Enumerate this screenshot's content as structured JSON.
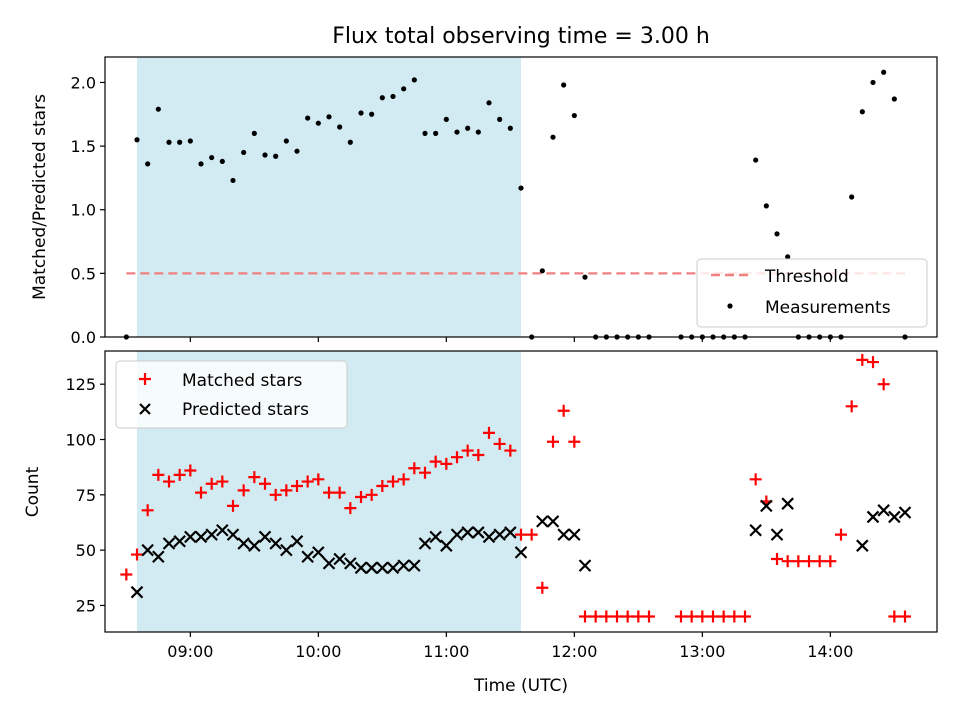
{
  "title": "Flux total observing time = 3.00 h",
  "colors": {
    "shade": "#add8e6",
    "threshold": "#f08080",
    "measurements": "#000000",
    "matched": "#ff0000",
    "predicted": "#000000"
  },
  "chart_data": [
    {
      "type": "scatter",
      "ylabel": "Matched/Predicted stars",
      "ylim": [
        0,
        2.2
      ],
      "yticks": [
        0.0,
        0.5,
        1.0,
        1.5,
        2.0
      ],
      "ytick_labels": [
        "0.0",
        "0.5",
        "1.0",
        "1.5",
        "2.0"
      ],
      "legend_position": "lower-right",
      "shaded_interval": [
        "08:35",
        "11:35"
      ],
      "threshold": {
        "name": "Threshold",
        "value": 0.5,
        "x_range": [
          "08:30",
          "14:35"
        ]
      },
      "series": [
        {
          "name": "Measurements",
          "marker": "dot",
          "x": [
            "08:30",
            "08:35",
            "08:40",
            "08:45",
            "08:50",
            "08:55",
            "09:00",
            "09:05",
            "09:10",
            "09:15",
            "09:20",
            "09:25",
            "09:30",
            "09:35",
            "09:40",
            "09:45",
            "09:50",
            "09:55",
            "10:00",
            "10:05",
            "10:10",
            "10:15",
            "10:20",
            "10:25",
            "10:30",
            "10:35",
            "10:40",
            "10:45",
            "10:50",
            "10:55",
            "11:00",
            "11:05",
            "11:10",
            "11:15",
            "11:20",
            "11:25",
            "11:30",
            "11:35",
            "11:40",
            "11:45",
            "11:50",
            "11:55",
            "12:00",
            "12:05",
            "12:10",
            "12:15",
            "12:20",
            "12:25",
            "12:30",
            "12:35",
            "12:50",
            "12:55",
            "13:00",
            "13:05",
            "13:10",
            "13:15",
            "13:20",
            "13:25",
            "13:30",
            "13:35",
            "13:40",
            "13:45",
            "13:50",
            "13:55",
            "14:00",
            "14:05",
            "14:10",
            "14:15",
            "14:20",
            "14:25",
            "14:30",
            "14:35"
          ],
          "y": [
            0.0,
            1.55,
            1.36,
            1.79,
            1.53,
            1.53,
            1.54,
            1.36,
            1.41,
            1.38,
            1.23,
            1.45,
            1.6,
            1.43,
            1.42,
            1.54,
            1.46,
            1.72,
            1.68,
            1.73,
            1.65,
            1.53,
            1.76,
            1.75,
            1.88,
            1.89,
            1.95,
            2.02,
            1.6,
            1.6,
            1.71,
            1.61,
            1.64,
            1.61,
            1.84,
            1.71,
            1.64,
            1.17,
            0.0,
            0.52,
            1.57,
            1.98,
            1.74,
            0.47,
            0.0,
            0.0,
            0.0,
            0.0,
            0.0,
            0.0,
            0.0,
            0.0,
            0.0,
            0.0,
            0.0,
            0.0,
            0.0,
            1.39,
            1.03,
            0.81,
            0.63,
            0.0,
            0.0,
            0.0,
            0.0,
            0.0,
            1.1,
            1.77,
            2.0,
            2.08,
            1.87,
            0.0
          ]
        }
      ]
    },
    {
      "type": "scatter",
      "xlabel": "Time (UTC)",
      "ylabel": "Count",
      "ylim": [
        13,
        140
      ],
      "yticks": [
        25,
        50,
        75,
        100,
        125
      ],
      "ytick_labels": [
        "25",
        "50",
        "75",
        "100",
        "125"
      ],
      "xticks": [
        "09:00",
        "10:00",
        "11:00",
        "12:00",
        "13:00",
        "14:00"
      ],
      "xlim": [
        "08:20",
        "14:50"
      ],
      "legend_position": "upper-left",
      "shaded_interval": [
        "08:35",
        "11:35"
      ],
      "series": [
        {
          "name": "Matched stars",
          "marker": "plus",
          "x": [
            "08:30",
            "08:35",
            "08:40",
            "08:45",
            "08:50",
            "08:55",
            "09:00",
            "09:05",
            "09:10",
            "09:15",
            "09:20",
            "09:25",
            "09:30",
            "09:35",
            "09:40",
            "09:45",
            "09:50",
            "09:55",
            "10:00",
            "10:05",
            "10:10",
            "10:15",
            "10:20",
            "10:25",
            "10:30",
            "10:35",
            "10:40",
            "10:45",
            "10:50",
            "10:55",
            "11:00",
            "11:05",
            "11:10",
            "11:15",
            "11:20",
            "11:25",
            "11:30",
            "11:35",
            "11:40",
            "11:45",
            "11:50",
            "11:55",
            "12:00",
            "12:05",
            "12:10",
            "12:15",
            "12:20",
            "12:25",
            "12:30",
            "12:35",
            "12:50",
            "12:55",
            "13:00",
            "13:05",
            "13:10",
            "13:15",
            "13:20",
            "13:25",
            "13:30",
            "13:35",
            "13:40",
            "13:45",
            "13:50",
            "13:55",
            "14:00",
            "14:05",
            "14:10",
            "14:15",
            "14:20",
            "14:25",
            "14:30",
            "14:35"
          ],
          "y": [
            39,
            48,
            68,
            84,
            81,
            84,
            86,
            76,
            80,
            81,
            70,
            77,
            83,
            80,
            75,
            77,
            79,
            81,
            82,
            76,
            76,
            69,
            74,
            75,
            79,
            81,
            82,
            87,
            85,
            90,
            89,
            92,
            95,
            93,
            103,
            98,
            95,
            57,
            57,
            33,
            99,
            113,
            99,
            20,
            20,
            20,
            20,
            20,
            20,
            20,
            20,
            20,
            20,
            20,
            20,
            20,
            20,
            82,
            72,
            46,
            45,
            45,
            45,
            45,
            45,
            57,
            115,
            136,
            135,
            125,
            20,
            20
          ]
        },
        {
          "name": "Predicted stars",
          "marker": "x",
          "x": [
            "08:35",
            "08:40",
            "08:45",
            "08:50",
            "08:55",
            "09:00",
            "09:05",
            "09:10",
            "09:15",
            "09:20",
            "09:25",
            "09:30",
            "09:35",
            "09:40",
            "09:45",
            "09:50",
            "09:55",
            "10:00",
            "10:05",
            "10:10",
            "10:15",
            "10:20",
            "10:25",
            "10:30",
            "10:35",
            "10:40",
            "10:45",
            "10:50",
            "10:55",
            "11:00",
            "11:05",
            "11:10",
            "11:15",
            "11:20",
            "11:25",
            "11:30",
            "11:35",
            "11:45",
            "11:50",
            "11:55",
            "12:00",
            "12:05",
            "13:25",
            "13:30",
            "13:35",
            "13:40",
            "14:15",
            "14:20",
            "14:25",
            "14:30",
            "14:35"
          ],
          "y": [
            31,
            50,
            47,
            53,
            54,
            56,
            56,
            57,
            59,
            57,
            53,
            52,
            56,
            53,
            50,
            54,
            47,
            49,
            44,
            46,
            44,
            42,
            42,
            42,
            42,
            43,
            43,
            53,
            56,
            52,
            57,
            58,
            58,
            56,
            57,
            58,
            49,
            63,
            63,
            57,
            57,
            43,
            59,
            70,
            57,
            71,
            52,
            65,
            68,
            65,
            67
          ]
        }
      ]
    }
  ]
}
